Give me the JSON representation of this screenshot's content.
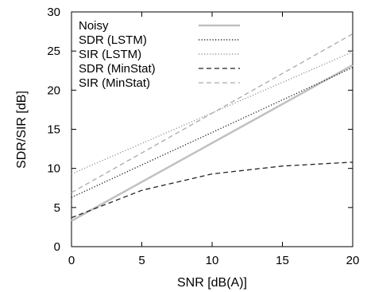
{
  "chart_data": {
    "type": "line",
    "xlabel": "SNR [dB(A)]",
    "ylabel": "SDR/SIR [dB]",
    "xlim": [
      0,
      20
    ],
    "ylim": [
      0,
      30
    ],
    "xticks": [
      0,
      5,
      10,
      15,
      20
    ],
    "yticks": [
      0,
      5,
      10,
      15,
      20,
      25,
      30
    ],
    "grid": false,
    "legend_position": "top-left",
    "series": [
      {
        "name": "Noisy",
        "x": [
          0,
          20
        ],
        "y": [
          3.3,
          23.2
        ],
        "color": "#c0c0c0",
        "style": "solid-thick"
      },
      {
        "name": "SDR (LSTM)",
        "x": [
          0,
          20
        ],
        "y": [
          6.3,
          22.9
        ],
        "color": "#222222",
        "style": "dotted"
      },
      {
        "name": "SIR (LSTM)",
        "x": [
          0,
          20
        ],
        "y": [
          9.3,
          24.9
        ],
        "color": "#999999",
        "style": "dotted"
      },
      {
        "name": "SDR (MinStat)",
        "x": [
          0,
          5,
          10,
          15,
          20
        ],
        "y": [
          3.7,
          7.2,
          9.3,
          10.3,
          10.8
        ],
        "color": "#222222",
        "style": "dashed"
      },
      {
        "name": "SIR (MinStat)",
        "x": [
          0,
          20
        ],
        "y": [
          6.9,
          27.2
        ],
        "color": "#aaaaaa",
        "style": "dashed"
      }
    ]
  }
}
